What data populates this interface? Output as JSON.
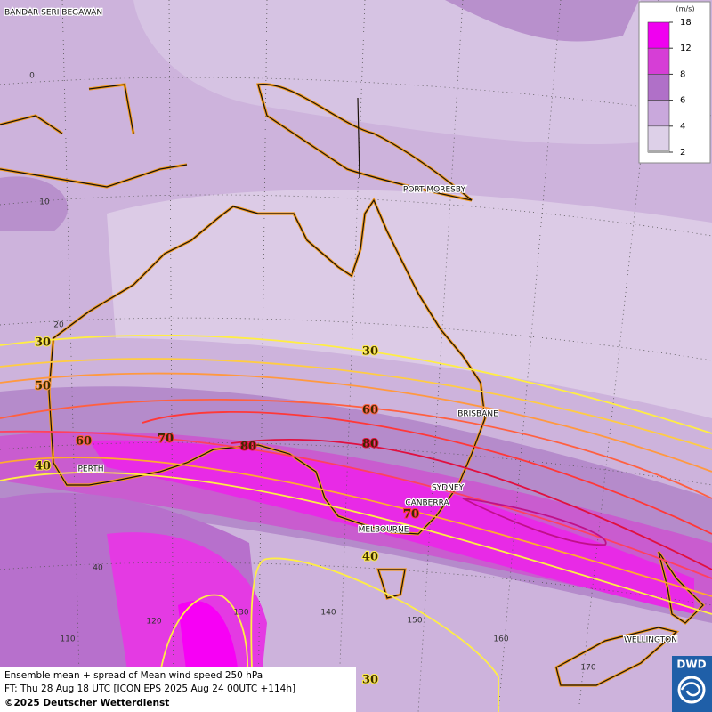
{
  "map": {
    "places": [
      "BANDAR SERI BEGAWAN",
      "PORT MORESBY",
      "BRISBANE",
      "SYDNEY",
      "CANBERRA",
      "MELBOURNE",
      "PERTH",
      "WELLINGTON"
    ],
    "lat_labels": [
      0,
      10,
      20,
      40
    ],
    "lon_labels": [
      110,
      120,
      130,
      140,
      150,
      160,
      170
    ],
    "contour_labels": [
      30,
      30,
      50,
      60,
      70,
      80,
      60,
      80,
      40,
      70,
      40,
      30
    ]
  },
  "legend": {
    "unit": "(m/s)",
    "ticks": [
      18,
      12,
      8,
      6,
      4,
      2
    ]
  },
  "footer": {
    "lines": [
      "Ensemble mean + spread of Mean wind speed 250 hPa",
      "FT: Thu 28 Aug 18 UTC [ICON EPS 2025 Aug 24 00UTC +114h]",
      "©2025 Deutscher Wetterdienst"
    ]
  },
  "logo": "DWD"
}
